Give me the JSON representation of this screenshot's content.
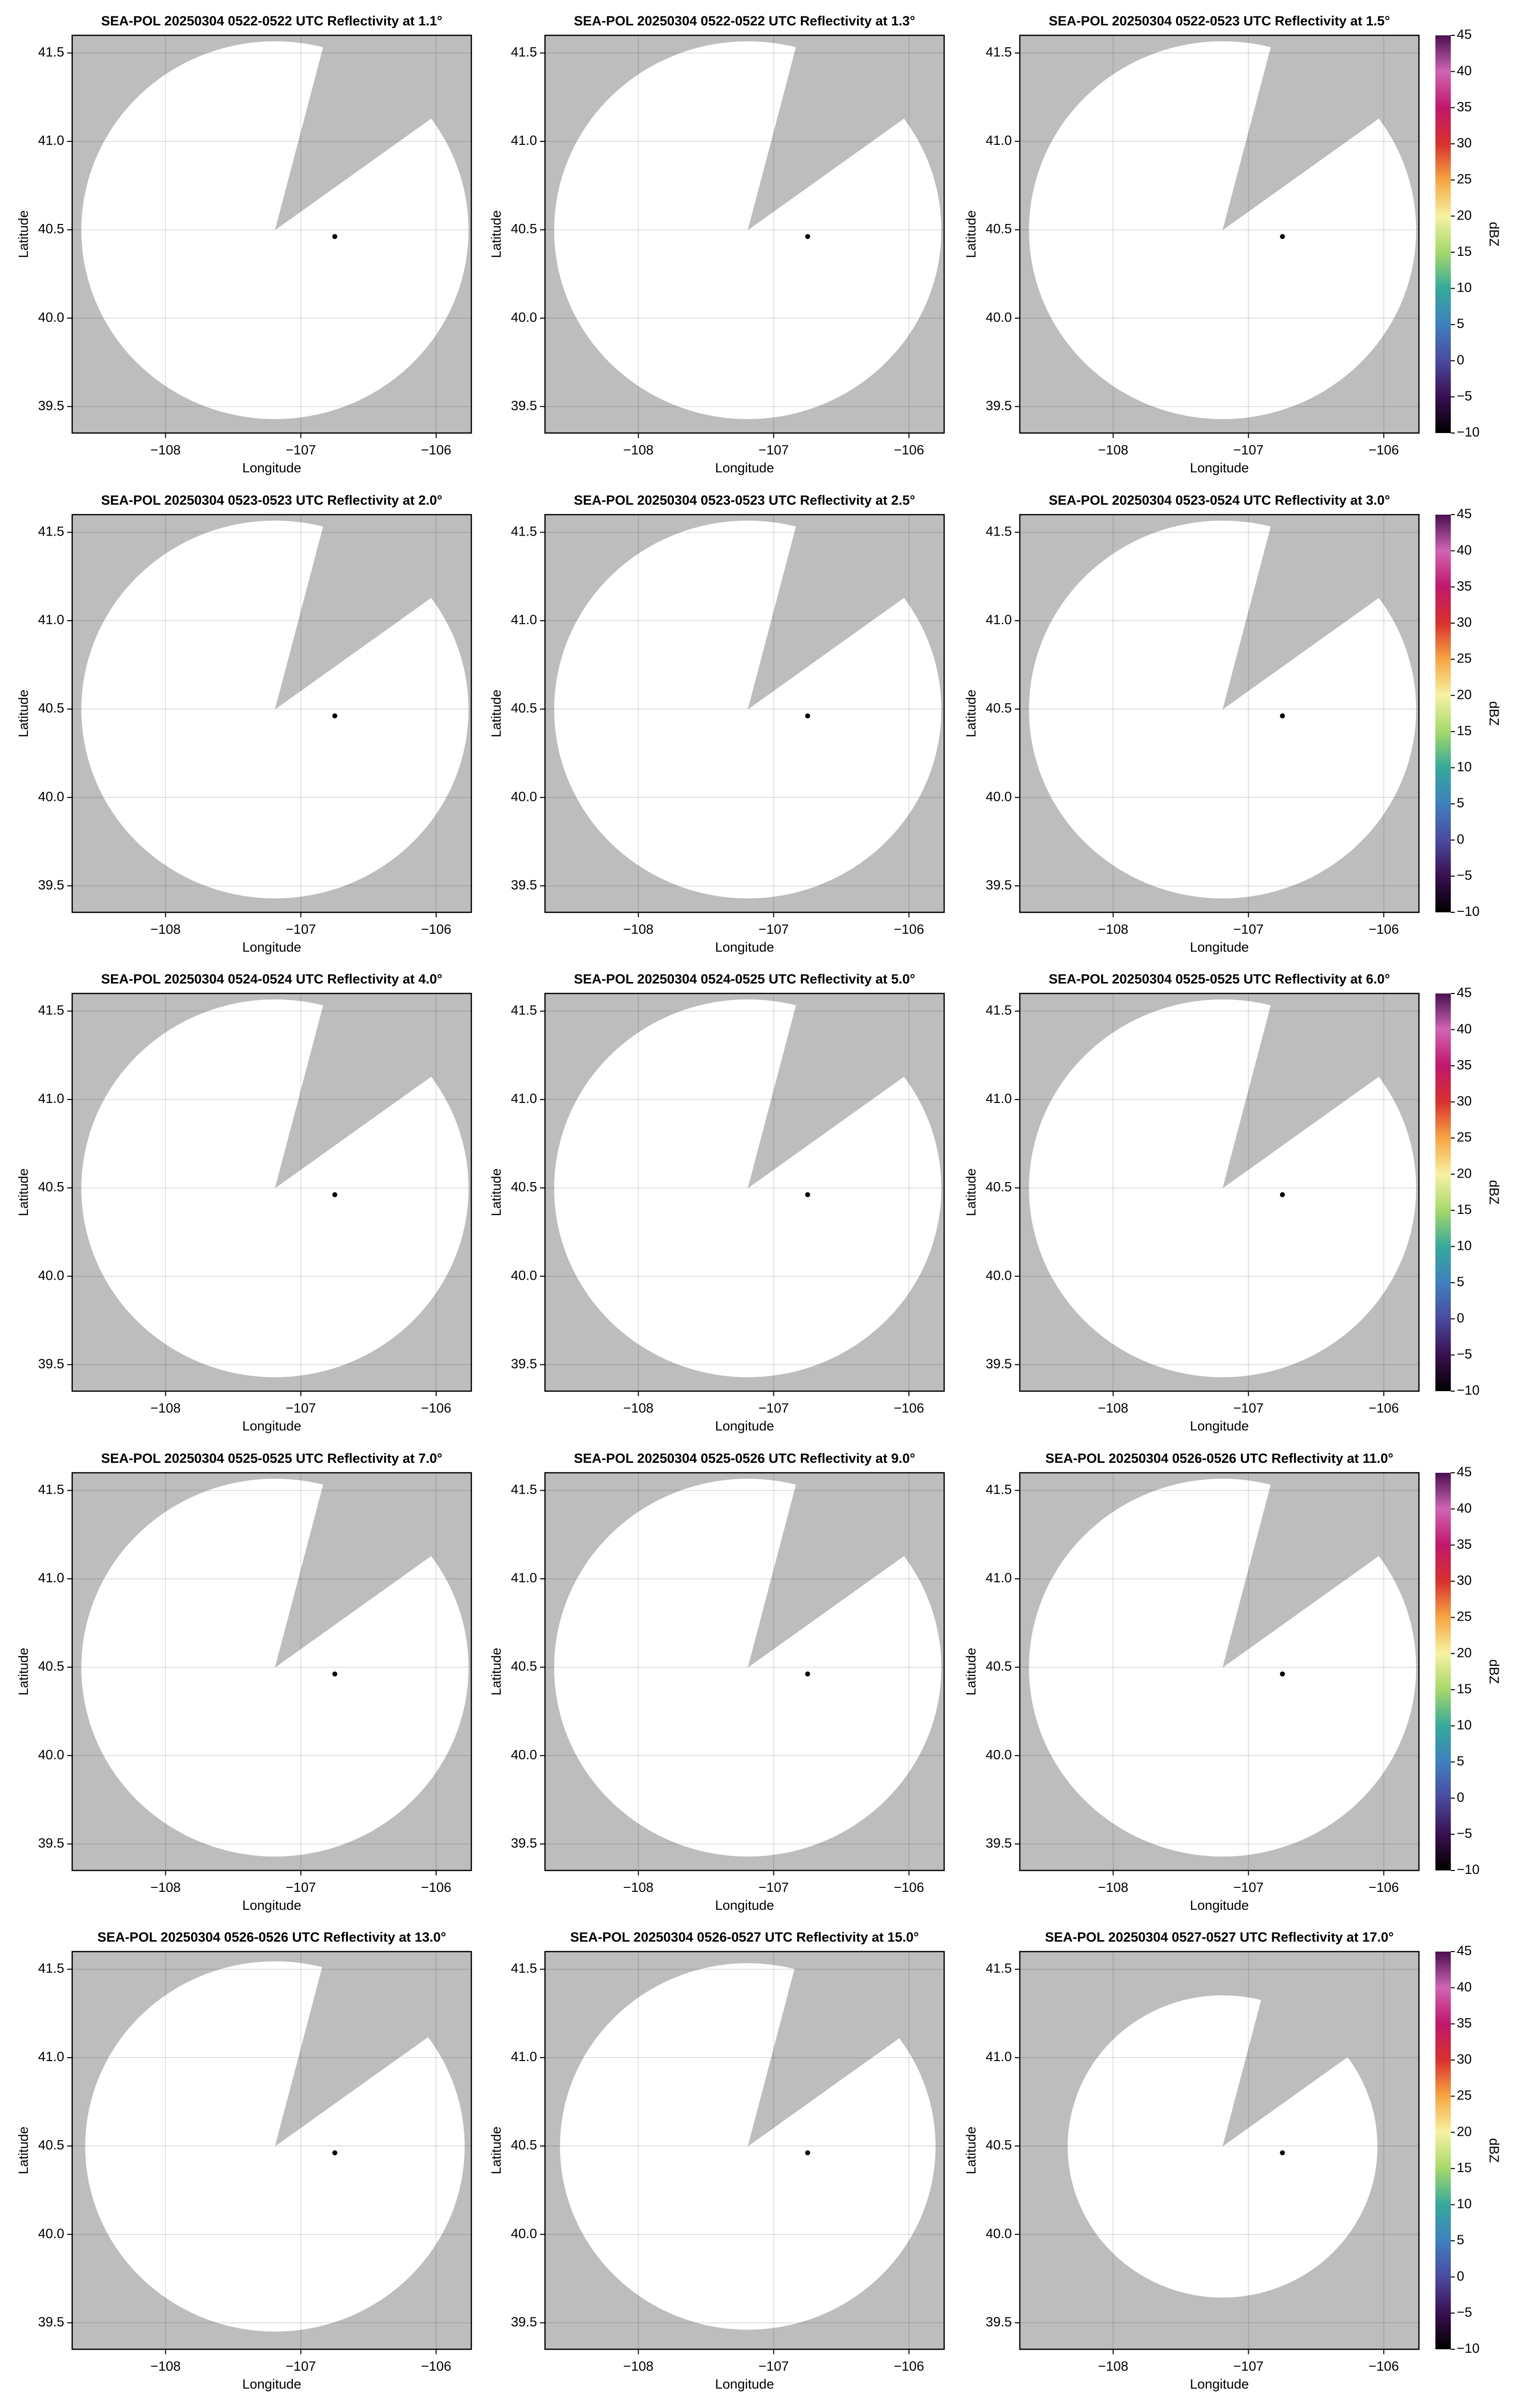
{
  "chart_data": [
    {
      "type": "ppi",
      "title": "SEA-POL 20250304 0522-0522 UTC Reflectivity at 1.1°",
      "xlabel": "Longitude",
      "ylabel": "Latitude",
      "xlim": [
        -108.69,
        -105.74
      ],
      "ylim": [
        39.35,
        41.6
      ],
      "xticks": [
        {
          "value": -108,
          "label": "−108"
        },
        {
          "value": -107,
          "label": "−107"
        },
        {
          "value": -106,
          "label": "−106"
        }
      ],
      "yticks": [
        39.5,
        {
          "value": 40,
          "label": "40.0"
        },
        40.5,
        {
          "value": 41,
          "label": "41.0"
        },
        41.5
      ]
    },
    {
      "type": "ppi",
      "title": "SEA-POL 20250304 0522-0522 UTC Reflectivity at 1.3°",
      "xlabel": "Longitude",
      "ylabel": "Latitude",
      "xlim": [
        -108.69,
        -105.74
      ],
      "ylim": [
        39.35,
        41.6
      ],
      "xticks": [
        {
          "value": -108,
          "label": "−108"
        },
        {
          "value": -107,
          "label": "−107"
        },
        {
          "value": -106,
          "label": "−106"
        }
      ],
      "yticks": [
        39.5,
        {
          "value": 40,
          "label": "40.0"
        },
        40.5,
        {
          "value": 41,
          "label": "41.0"
        },
        41.5
      ]
    },
    {
      "type": "ppi",
      "title": "SEA-POL 20250304 0522-0523 UTC Reflectivity at 1.5°",
      "xlabel": "Longitude",
      "ylabel": "Latitude",
      "xlim": [
        -108.69,
        -105.74
      ],
      "ylim": [
        39.35,
        41.6
      ],
      "xticks": [
        {
          "value": -108,
          "label": "−108"
        },
        {
          "value": -107,
          "label": "−107"
        },
        {
          "value": -106,
          "label": "−106"
        }
      ],
      "yticks": [
        39.5,
        {
          "value": 40,
          "label": "40.0"
        },
        40.5,
        {
          "value": 41,
          "label": "41.0"
        },
        41.5
      ],
      "colorbar": {
        "label": "dBZ",
        "lim": [
          -10,
          45
        ],
        "ticks": [
          {
            "value": -10,
            "label": "−10"
          },
          {
            "value": -5,
            "label": "−5"
          },
          0,
          5,
          10,
          15,
          20,
          25,
          30,
          35,
          40,
          45
        ],
        "colormap": [
          "#000000",
          "#3a0f50",
          "#4b4aa0",
          "#3f80bf",
          "#35a99a",
          "#a6d86a",
          "#f6f2a2",
          "#f6a542",
          "#d8312e",
          "#c0186c",
          "#d064b4",
          "#4a1050"
        ]
      }
    },
    {
      "type": "ppi",
      "title": "SEA-POL 20250304 0523-0523 UTC Reflectivity at 2.0°",
      "xlabel": "Longitude",
      "ylabel": "Latitude",
      "xlim": [
        -108.69,
        -105.74
      ],
      "ylim": [
        39.35,
        41.6
      ],
      "xticks": [
        {
          "value": -108,
          "label": "−108"
        },
        {
          "value": -107,
          "label": "−107"
        },
        {
          "value": -106,
          "label": "−106"
        }
      ],
      "yticks": [
        39.5,
        {
          "value": 40,
          "label": "40.0"
        },
        40.5,
        {
          "value": 41,
          "label": "41.0"
        },
        41.5
      ]
    },
    {
      "type": "ppi",
      "title": "SEA-POL 20250304 0523-0523 UTC Reflectivity at 2.5°",
      "xlabel": "Longitude",
      "ylabel": "Latitude",
      "xlim": [
        -108.69,
        -105.74
      ],
      "ylim": [
        39.35,
        41.6
      ],
      "xticks": [
        {
          "value": -108,
          "label": "−108"
        },
        {
          "value": -107,
          "label": "−107"
        },
        {
          "value": -106,
          "label": "−106"
        }
      ],
      "yticks": [
        39.5,
        {
          "value": 40,
          "label": "40.0"
        },
        40.5,
        {
          "value": 41,
          "label": "41.0"
        },
        41.5
      ]
    },
    {
      "type": "ppi",
      "title": "SEA-POL 20250304 0523-0524 UTC Reflectivity at 3.0°",
      "xlabel": "Longitude",
      "ylabel": "Latitude",
      "xlim": [
        -108.69,
        -105.74
      ],
      "ylim": [
        39.35,
        41.6
      ],
      "xticks": [
        {
          "value": -108,
          "label": "−108"
        },
        {
          "value": -107,
          "label": "−107"
        },
        {
          "value": -106,
          "label": "−106"
        }
      ],
      "yticks": [
        39.5,
        {
          "value": 40,
          "label": "40.0"
        },
        40.5,
        {
          "value": 41,
          "label": "41.0"
        },
        41.5
      ],
      "colorbar": {
        "label": "dBZ",
        "lim": [
          -10,
          45
        ],
        "ticks": [
          {
            "value": -10,
            "label": "−10"
          },
          {
            "value": -5,
            "label": "−5"
          },
          0,
          5,
          10,
          15,
          20,
          25,
          30,
          35,
          40,
          45
        ],
        "colormap": [
          "#000000",
          "#3a0f50",
          "#4b4aa0",
          "#3f80bf",
          "#35a99a",
          "#a6d86a",
          "#f6f2a2",
          "#f6a542",
          "#d8312e",
          "#c0186c",
          "#d064b4",
          "#4a1050"
        ]
      }
    },
    {
      "type": "ppi",
      "title": "SEA-POL 20250304 0524-0524 UTC Reflectivity at 4.0°",
      "xlabel": "Longitude",
      "ylabel": "Latitude",
      "xlim": [
        -108.69,
        -105.74
      ],
      "ylim": [
        39.35,
        41.6
      ],
      "xticks": [
        {
          "value": -108,
          "label": "−108"
        },
        {
          "value": -107,
          "label": "−107"
        },
        {
          "value": -106,
          "label": "−106"
        }
      ],
      "yticks": [
        39.5,
        {
          "value": 40,
          "label": "40.0"
        },
        40.5,
        {
          "value": 41,
          "label": "41.0"
        },
        41.5
      ]
    },
    {
      "type": "ppi",
      "title": "SEA-POL 20250304 0524-0525 UTC Reflectivity at 5.0°",
      "xlabel": "Longitude",
      "ylabel": "Latitude",
      "xlim": [
        -108.69,
        -105.74
      ],
      "ylim": [
        39.35,
        41.6
      ],
      "xticks": [
        {
          "value": -108,
          "label": "−108"
        },
        {
          "value": -107,
          "label": "−107"
        },
        {
          "value": -106,
          "label": "−106"
        }
      ],
      "yticks": [
        39.5,
        {
          "value": 40,
          "label": "40.0"
        },
        40.5,
        {
          "value": 41,
          "label": "41.0"
        },
        41.5
      ]
    },
    {
      "type": "ppi",
      "title": "SEA-POL 20250304 0525-0525 UTC Reflectivity at 6.0°",
      "xlabel": "Longitude",
      "ylabel": "Latitude",
      "xlim": [
        -108.69,
        -105.74
      ],
      "ylim": [
        39.35,
        41.6
      ],
      "xticks": [
        {
          "value": -108,
          "label": "−108"
        },
        {
          "value": -107,
          "label": "−107"
        },
        {
          "value": -106,
          "label": "−106"
        }
      ],
      "yticks": [
        39.5,
        {
          "value": 40,
          "label": "40.0"
        },
        40.5,
        {
          "value": 41,
          "label": "41.0"
        },
        41.5
      ],
      "colorbar": {
        "label": "dBZ",
        "lim": [
          -10,
          45
        ],
        "ticks": [
          {
            "value": -10,
            "label": "−10"
          },
          {
            "value": -5,
            "label": "−5"
          },
          0,
          5,
          10,
          15,
          20,
          25,
          30,
          35,
          40,
          45
        ],
        "colormap": [
          "#000000",
          "#3a0f50",
          "#4b4aa0",
          "#3f80bf",
          "#35a99a",
          "#a6d86a",
          "#f6f2a2",
          "#f6a542",
          "#d8312e",
          "#c0186c",
          "#d064b4",
          "#4a1050"
        ]
      }
    },
    {
      "type": "ppi",
      "title": "SEA-POL 20250304 0525-0525 UTC Reflectivity at 7.0°",
      "xlabel": "Longitude",
      "ylabel": "Latitude",
      "xlim": [
        -108.69,
        -105.74
      ],
      "ylim": [
        39.35,
        41.6
      ],
      "xticks": [
        {
          "value": -108,
          "label": "−108"
        },
        {
          "value": -107,
          "label": "−107"
        },
        {
          "value": -106,
          "label": "−106"
        }
      ],
      "yticks": [
        39.5,
        {
          "value": 40,
          "label": "40.0"
        },
        40.5,
        {
          "value": 41,
          "label": "41.0"
        },
        41.5
      ]
    },
    {
      "type": "ppi",
      "title": "SEA-POL 20250304 0525-0526 UTC Reflectivity at 9.0°",
      "xlabel": "Longitude",
      "ylabel": "Latitude",
      "xlim": [
        -108.69,
        -105.74
      ],
      "ylim": [
        39.35,
        41.6
      ],
      "xticks": [
        {
          "value": -108,
          "label": "−108"
        },
        {
          "value": -107,
          "label": "−107"
        },
        {
          "value": -106,
          "label": "−106"
        }
      ],
      "yticks": [
        39.5,
        {
          "value": 40,
          "label": "40.0"
        },
        40.5,
        {
          "value": 41,
          "label": "41.0"
        },
        41.5
      ]
    },
    {
      "type": "ppi",
      "title": "SEA-POL 20250304 0526-0526 UTC Reflectivity at 11.0°",
      "xlabel": "Longitude",
      "ylabel": "Latitude",
      "xlim": [
        -108.69,
        -105.74
      ],
      "ylim": [
        39.35,
        41.6
      ],
      "xticks": [
        {
          "value": -108,
          "label": "−108"
        },
        {
          "value": -107,
          "label": "−107"
        },
        {
          "value": -106,
          "label": "−106"
        }
      ],
      "yticks": [
        39.5,
        {
          "value": 40,
          "label": "40.0"
        },
        40.5,
        {
          "value": 41,
          "label": "41.0"
        },
        41.5
      ],
      "colorbar": {
        "label": "dBZ",
        "lim": [
          -10,
          45
        ],
        "ticks": [
          {
            "value": -10,
            "label": "−10"
          },
          {
            "value": -5,
            "label": "−5"
          },
          0,
          5,
          10,
          15,
          20,
          25,
          30,
          35,
          40,
          45
        ],
        "colormap": [
          "#000000",
          "#3a0f50",
          "#4b4aa0",
          "#3f80bf",
          "#35a99a",
          "#a6d86a",
          "#f6f2a2",
          "#f6a542",
          "#d8312e",
          "#c0186c",
          "#d064b4",
          "#4a1050"
        ]
      }
    },
    {
      "type": "ppi",
      "title": "SEA-POL 20250304 0526-0526 UTC Reflectivity at 13.0°",
      "xlabel": "Longitude",
      "ylabel": "Latitude",
      "xlim": [
        -108.69,
        -105.74
      ],
      "ylim": [
        39.35,
        41.6
      ],
      "xticks": [
        {
          "value": -108,
          "label": "−108"
        },
        {
          "value": -107,
          "label": "−107"
        },
        {
          "value": -106,
          "label": "−106"
        }
      ],
      "yticks": [
        39.5,
        {
          "value": 40,
          "label": "40.0"
        },
        40.5,
        {
          "value": 41,
          "label": "41.0"
        },
        41.5
      ]
    },
    {
      "type": "ppi",
      "title": "SEA-POL 20250304 0526-0527 UTC Reflectivity at 15.0°",
      "xlabel": "Longitude",
      "ylabel": "Latitude",
      "xlim": [
        -108.69,
        -105.74
      ],
      "ylim": [
        39.35,
        41.6
      ],
      "xticks": [
        {
          "value": -108,
          "label": "−108"
        },
        {
          "value": -107,
          "label": "−107"
        },
        {
          "value": -106,
          "label": "−106"
        }
      ],
      "yticks": [
        39.5,
        {
          "value": 40,
          "label": "40.0"
        },
        40.5,
        {
          "value": 41,
          "label": "41.0"
        },
        41.5
      ]
    },
    {
      "type": "ppi",
      "title": "SEA-POL 20250304 0527-0527 UTC Reflectivity at 17.0°",
      "xlabel": "Longitude",
      "ylabel": "Latitude",
      "xlim": [
        -108.69,
        -105.74
      ],
      "ylim": [
        39.35,
        41.6
      ],
      "xticks": [
        {
          "value": -108,
          "label": "−108"
        },
        {
          "value": -107,
          "label": "−107"
        },
        {
          "value": -106,
          "label": "−106"
        }
      ],
      "yticks": [
        39.5,
        {
          "value": 40,
          "label": "40.0"
        },
        40.5,
        {
          "value": 41,
          "label": "41.0"
        },
        41.5
      ],
      "colorbar": {
        "label": "dBZ",
        "lim": [
          -10,
          45
        ],
        "ticks": [
          {
            "value": -10,
            "label": "−10"
          },
          {
            "value": -5,
            "label": "−5"
          },
          0,
          5,
          10,
          15,
          20,
          25,
          30,
          35,
          40,
          45
        ],
        "colormap": [
          "#000000",
          "#3a0f50",
          "#4b4aa0",
          "#3f80bf",
          "#35a99a",
          "#a6d86a",
          "#f6f2a2",
          "#f6a542",
          "#d8312e",
          "#c0186c",
          "#d064b4",
          "#4a1050"
        ]
      }
    }
  ]
}
